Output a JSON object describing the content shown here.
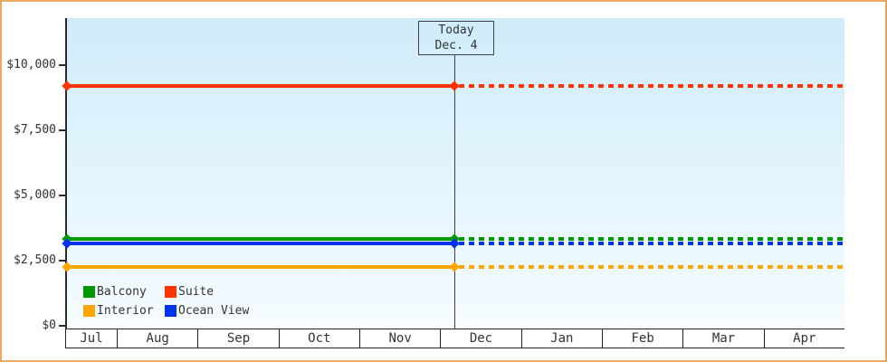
{
  "today": {
    "line1": "Today",
    "line2": "Dec. 4"
  },
  "y_axis": {
    "tick_labels": [
      "$0",
      "$2,500",
      "$5,000",
      "$7,500",
      "$10,000"
    ],
    "tick_values": [
      0,
      2500,
      5000,
      7500,
      10000
    ]
  },
  "x_axis": {
    "months": [
      "Jul",
      "Aug",
      "Sep",
      "Oct",
      "Nov",
      "Dec",
      "Jan",
      "Feb",
      "Mar",
      "Apr"
    ]
  },
  "legend": {
    "items": [
      {
        "label": "Balcony",
        "color": "#009900"
      },
      {
        "label": "Suite",
        "color": "#ff3300"
      },
      {
        "label": "Interior",
        "color": "#ffa500"
      },
      {
        "label": "Ocean View",
        "color": "#0033ee"
      }
    ]
  },
  "colors": {
    "frame_border": "#eaa95e",
    "axis": "#2b2b2b",
    "today_line": "#3c4146",
    "text": "#333333",
    "plot_bg_top": "#cfebf9",
    "plot_bg_bottom": "#f6fcff"
  },
  "chart_data": {
    "type": "line",
    "title": "",
    "x_categories": [
      "Jul",
      "Aug",
      "Sep",
      "Oct",
      "Nov",
      "Dec",
      "Jan",
      "Feb",
      "Mar",
      "Apr"
    ],
    "xlabel": "",
    "ylabel": "",
    "ylim": [
      0,
      11800
    ],
    "ytick_values": [
      0,
      2500,
      5000,
      7500,
      10000
    ],
    "grid": false,
    "legend_position": "bottom-left",
    "series": [
      {
        "name": "Suite",
        "color": "#ff3300",
        "value": 9200
      },
      {
        "name": "Balcony",
        "color": "#009900",
        "value": 3350
      },
      {
        "name": "Ocean View",
        "color": "#0033ee",
        "value": 3150
      },
      {
        "name": "Interior",
        "color": "#ffa500",
        "value": 2250
      }
    ],
    "annotation": {
      "label": "Today Dec. 4",
      "x_position": "Dec 4"
    },
    "note": "Each series is a flat (constant) price line across Jul-Apr: solid with diamond endpoint markers up to the Today (Dec. 4) vertical line, dotted after it."
  }
}
